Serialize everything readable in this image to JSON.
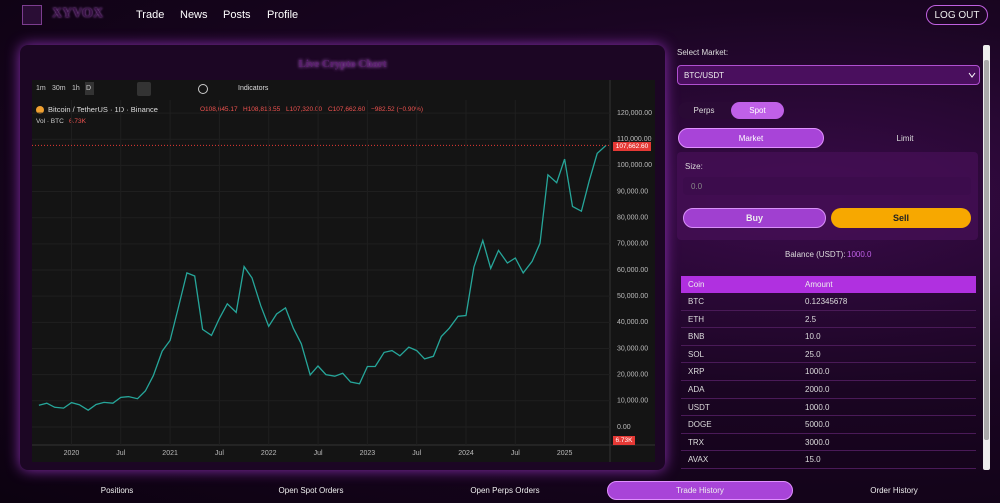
{
  "nav": {
    "logo": "XYVOX",
    "links": [
      "Trade",
      "News",
      "Posts",
      "Profile"
    ],
    "logout": "LOG OUT"
  },
  "chart_panel": {
    "title": "Live Crypto Chart",
    "intervals": [
      "1m",
      "30m",
      "1h",
      "D"
    ],
    "indicators": "Indicators",
    "symbol": "Bitcoin / TetherUS · 1D · Binance",
    "ohlc": [
      "O108,645.17",
      "H108,813.55",
      "L107,320.00",
      "C107,662.60",
      "−982.52 (−0.90%)"
    ],
    "volume_label": "Vol · BTC",
    "volume_value": "6.73K",
    "volume_tag": "6.73K",
    "price_tag": "107,662.60"
  },
  "chart_data": {
    "type": "line",
    "color": "#26a69a",
    "x": [
      2019.67,
      2019.75,
      2019.83,
      2019.92,
      2020.0,
      2020.08,
      2020.17,
      2020.25,
      2020.33,
      2020.42,
      2020.5,
      2020.58,
      2020.67,
      2020.75,
      2020.83,
      2020.92,
      2021.0,
      2021.08,
      2021.17,
      2021.25,
      2021.33,
      2021.42,
      2021.5,
      2021.58,
      2021.67,
      2021.75,
      2021.83,
      2021.92,
      2022.0,
      2022.08,
      2022.17,
      2022.25,
      2022.33,
      2022.42,
      2022.5,
      2022.58,
      2022.67,
      2022.75,
      2022.83,
      2022.92,
      2023.0,
      2023.08,
      2023.17,
      2023.25,
      2023.33,
      2023.42,
      2023.5,
      2023.58,
      2023.67,
      2023.75,
      2023.83,
      2023.92,
      2024.0,
      2024.08,
      2024.17,
      2024.25,
      2024.33,
      2024.42,
      2024.5,
      2024.58,
      2024.67,
      2024.75,
      2024.83,
      2024.92,
      2025.0,
      2025.08,
      2025.17,
      2025.25,
      2025.33,
      2025.42
    ],
    "values": [
      8300,
      9100,
      7500,
      7200,
      9300,
      8500,
      6400,
      8600,
      9400,
      9100,
      11300,
      11600,
      10800,
      13800,
      19600,
      29000,
      33100,
      45100,
      58900,
      57700,
      37300,
      35000,
      41500,
      47100,
      43800,
      61300,
      57000,
      46300,
      38500,
      43200,
      45500,
      37700,
      31800,
      19900,
      23300,
      20000,
      19400,
      20500,
      17200,
      16500,
      23100,
      23100,
      28500,
      29200,
      27200,
      30500,
      29200,
      26000,
      27000,
      34600,
      37700,
      42300,
      42600,
      61100,
      71300,
      60600,
      67500,
      62700,
      64600,
      58900,
      63300,
      70200,
      96400,
      93400,
      102400,
      84300,
      82500,
      94200,
      104600,
      107662.6
    ],
    "xlim": [
      2019.6,
      2025.46
    ],
    "ylim": [
      -6900,
      125000
    ],
    "xticks": [
      2020,
      {
        "value": 2020.5,
        "label": "Jul"
      },
      2021,
      {
        "value": 2021.5,
        "label": "Jul"
      },
      2022,
      {
        "value": 2022.5,
        "label": "Jul"
      },
      2023,
      {
        "value": 2023.5,
        "label": "Jul"
      },
      2024,
      {
        "value": 2024.5,
        "label": "Jul"
      },
      2025
    ],
    "yticks": [
      {
        "value": 0,
        "label": "0.00"
      },
      {
        "value": 10000,
        "label": "10,000.00"
      },
      {
        "value": 20000,
        "label": "20,000.00"
      },
      {
        "value": 30000,
        "label": "30,000.00"
      },
      {
        "value": 40000,
        "label": "40,000.00"
      },
      {
        "value": 50000,
        "label": "50,000.00"
      },
      {
        "value": 60000,
        "label": "60,000.00"
      },
      {
        "value": 70000,
        "label": "70,000.00"
      },
      {
        "value": 80000,
        "label": "80,000.00"
      },
      {
        "value": 90000,
        "label": "90,000.00"
      },
      {
        "value": 100000,
        "label": "100,000.00"
      },
      {
        "value": 110000,
        "label": "110,000.00"
      },
      {
        "value": 120000,
        "label": "120,000.00"
      }
    ],
    "grid": true
  },
  "trade": {
    "select_label": "Select Market:",
    "market": "BTC/USDT",
    "tabs": [
      "Perps",
      "Spot"
    ],
    "order_types": [
      "Market",
      "Limit"
    ],
    "size_label": "Size:",
    "size_placeholder": "0.0",
    "buy": "Buy",
    "sell": "Sell",
    "balance_label": "Balance (USDT):",
    "balance": "1000.0",
    "table": {
      "header": [
        "Coin",
        "Amount"
      ],
      "rows": [
        [
          "BTC",
          "0.12345678"
        ],
        [
          "ETH",
          "2.5"
        ],
        [
          "BNB",
          "10.0"
        ],
        [
          "SOL",
          "25.0"
        ],
        [
          "XRP",
          "1000.0"
        ],
        [
          "ADA",
          "2000.0"
        ],
        [
          "USDT",
          "1000.0"
        ],
        [
          "DOGE",
          "5000.0"
        ],
        [
          "TRX",
          "3000.0"
        ],
        [
          "AVAX",
          "15.0"
        ]
      ]
    }
  },
  "bottom_tabs": [
    "Positions",
    "Open Spot Orders",
    "Open Perps Orders",
    "Trade History",
    "Order History"
  ]
}
